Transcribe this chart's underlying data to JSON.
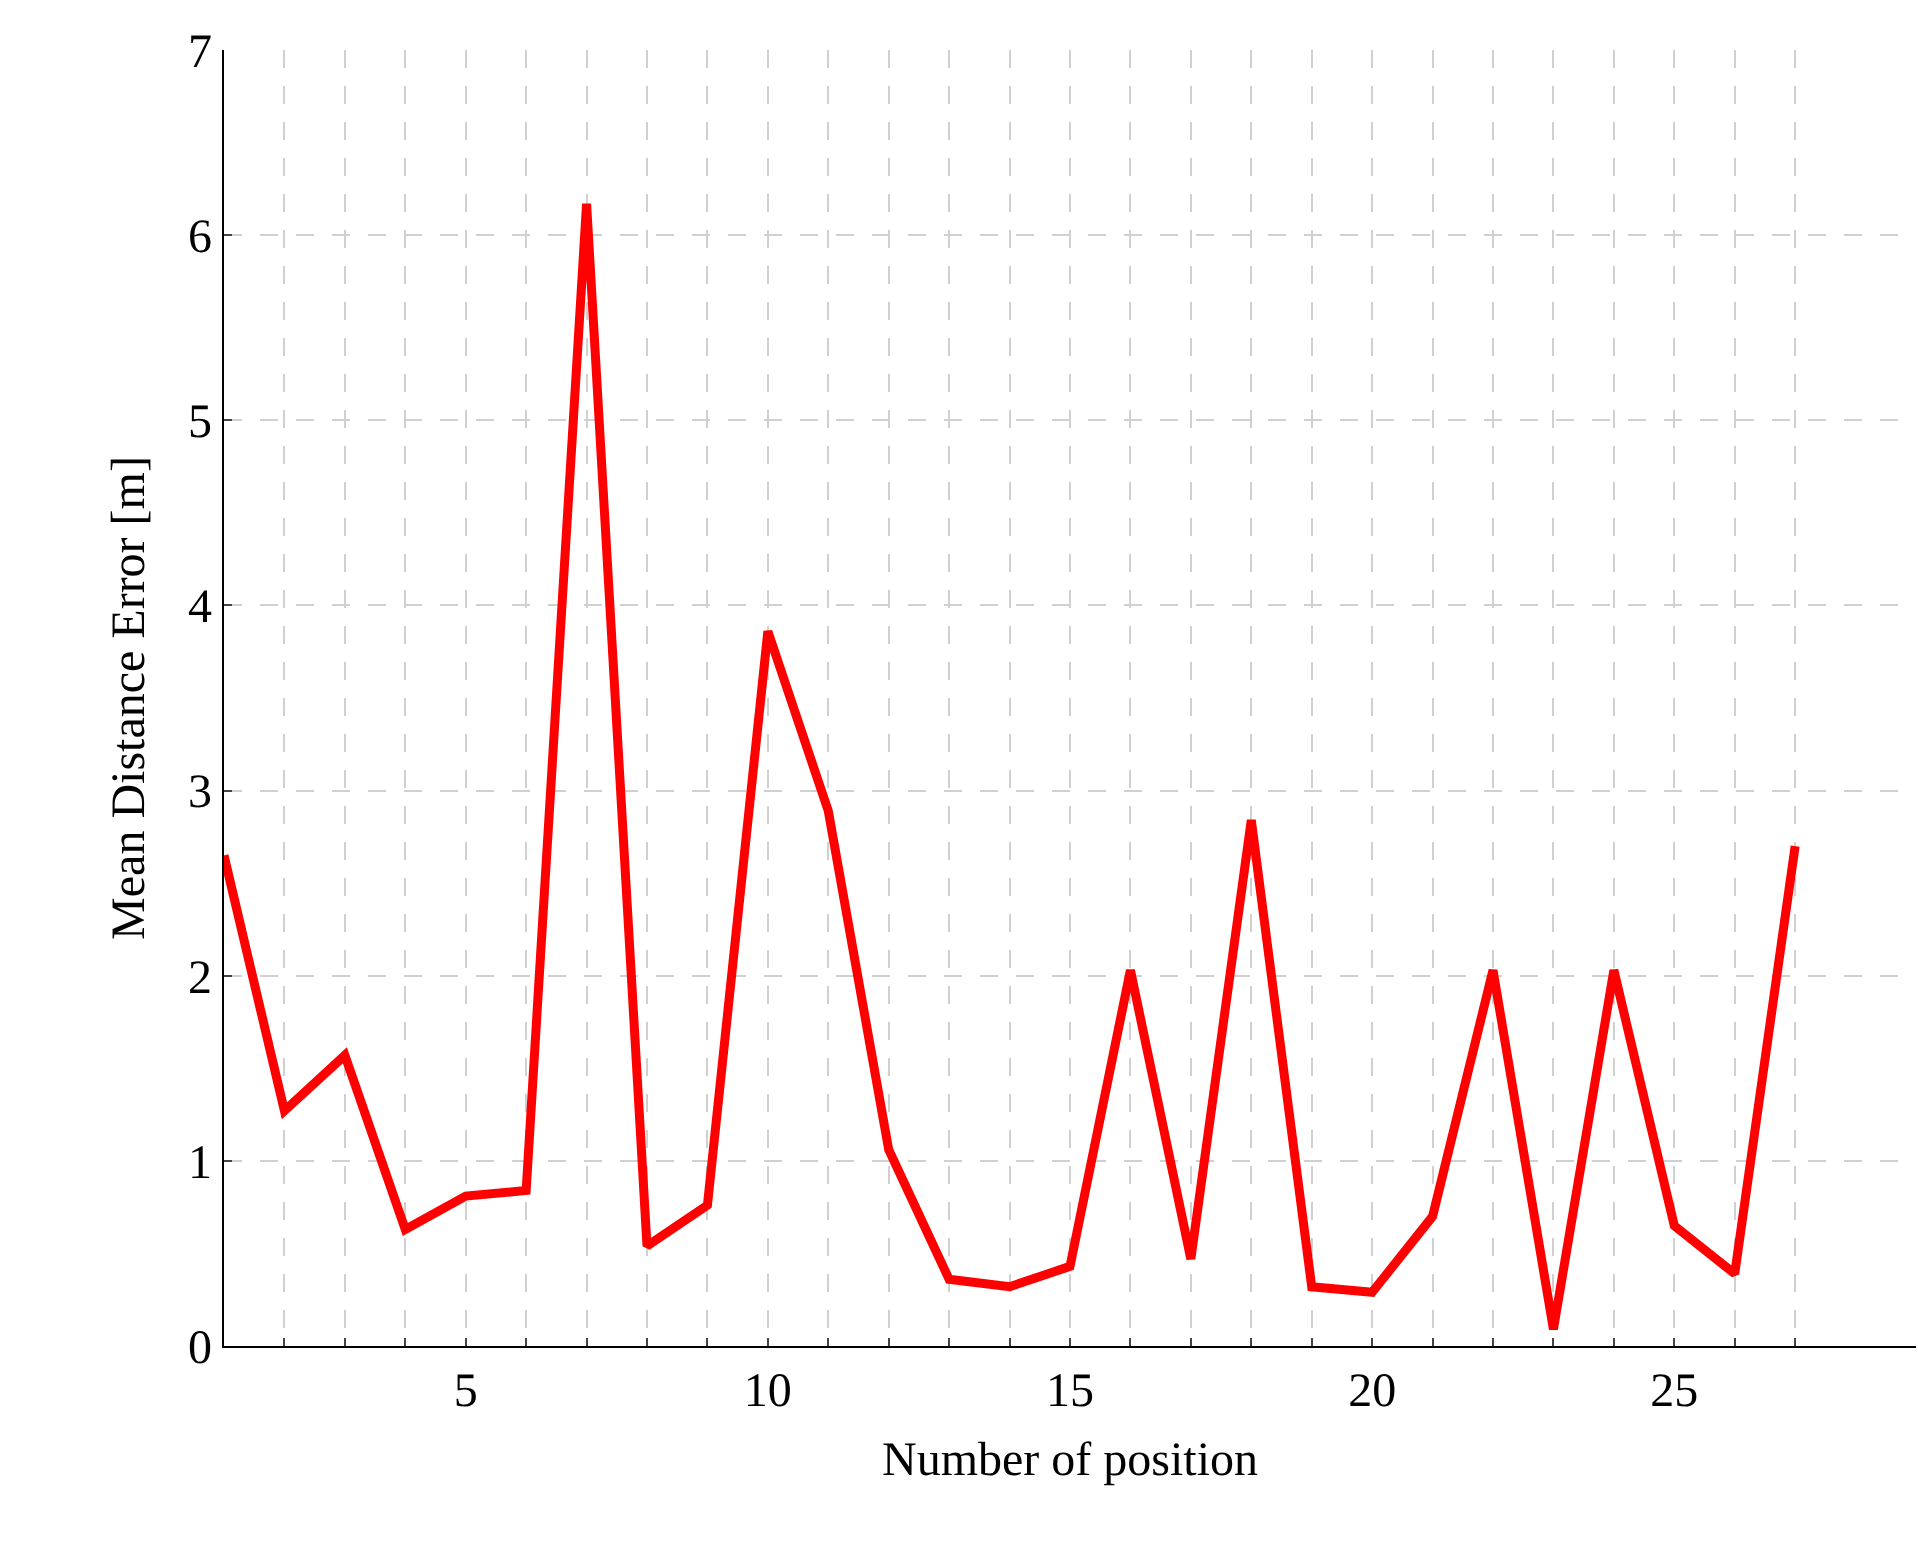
{
  "chart_data": {
    "type": "line",
    "xlabel": "Number of position",
    "ylabel": "Mean Distance Error [m]",
    "x": [
      1,
      2,
      3,
      4,
      5,
      6,
      7,
      8,
      9,
      10,
      11,
      12,
      13,
      14,
      15,
      16,
      17,
      18,
      19,
      20,
      21,
      22,
      23,
      24,
      25,
      26,
      27
    ],
    "series": [
      {
        "color": "#ff0000",
        "values": [
          2.65,
          1.27,
          1.57,
          0.63,
          0.81,
          0.84,
          6.17,
          0.54,
          0.76,
          3.86,
          2.89,
          1.06,
          0.36,
          0.32,
          0.43,
          2.03,
          0.47,
          2.84,
          0.32,
          0.29,
          0.7,
          2.03,
          0.09,
          2.03,
          0.65,
          0.39,
          2.7
        ]
      }
    ],
    "xlim": [
      1,
      29
    ],
    "ylim": [
      0,
      7
    ],
    "xticks": [
      {
        "value": 1,
        "label": null
      },
      {
        "value": 2,
        "label": null
      },
      {
        "value": 3,
        "label": null
      },
      {
        "value": 4,
        "label": null
      },
      5,
      {
        "value": 6,
        "label": null
      },
      {
        "value": 7,
        "label": null
      },
      {
        "value": 8,
        "label": null
      },
      {
        "value": 9,
        "label": null
      },
      10,
      {
        "value": 11,
        "label": null
      },
      {
        "value": 12,
        "label": null
      },
      {
        "value": 13,
        "label": null
      },
      {
        "value": 14,
        "label": null
      },
      15,
      {
        "value": 16,
        "label": null
      },
      {
        "value": 17,
        "label": null
      },
      {
        "value": 18,
        "label": null
      },
      {
        "value": 19,
        "label": null
      },
      20,
      {
        "value": 21,
        "label": null
      },
      {
        "value": 22,
        "label": null
      },
      {
        "value": 23,
        "label": null
      },
      {
        "value": 24,
        "label": null
      },
      25,
      {
        "value": 26,
        "label": null
      },
      {
        "value": 27,
        "label": null
      }
    ],
    "yticks": [
      0,
      1,
      2,
      3,
      4,
      5,
      6,
      7
    ],
    "grid": true,
    "legend": false,
    "marker": "none",
    "line_style": "solid"
  }
}
